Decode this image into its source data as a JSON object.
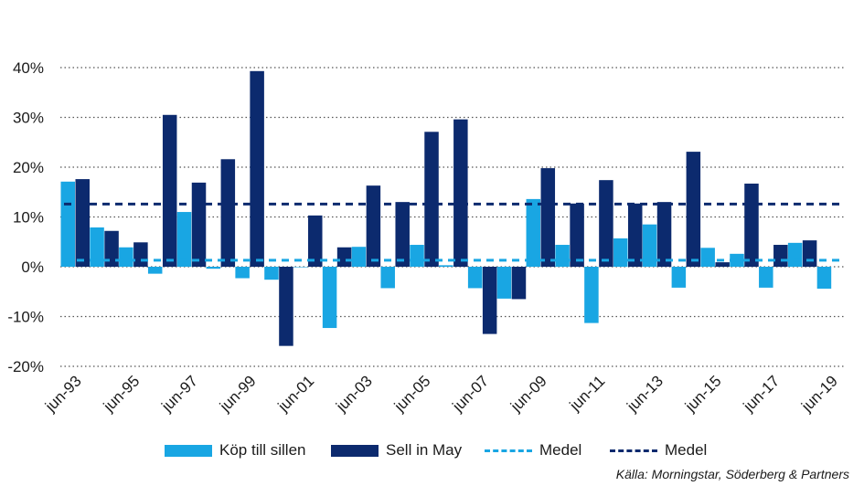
{
  "chart_data": {
    "type": "bar",
    "categories": [
      "jun-93",
      "jun-94",
      "jun-95",
      "jun-96",
      "jun-97",
      "jun-98",
      "jun-99",
      "jun-00",
      "jun-01",
      "jun-02",
      "jun-03",
      "jun-04",
      "jun-05",
      "jun-06",
      "jun-07",
      "jun-08",
      "jun-09",
      "jun-10",
      "jun-11",
      "jun-12",
      "jun-13",
      "jun-14",
      "jun-15",
      "jun-16",
      "jun-17",
      "jun-18",
      "jun-19"
    ],
    "tick_labels": [
      "jun-93",
      "jun-95",
      "jun-97",
      "jun-99",
      "jun-01",
      "jun-03",
      "jun-05",
      "jun-07",
      "jun-09",
      "jun-11",
      "jun-13",
      "jun-15",
      "jun-17",
      "jun-19"
    ],
    "series": [
      {
        "name": "Köp till sillen",
        "color": "#19a6e3",
        "values": [
          17.1,
          7.9,
          3.9,
          -1.4,
          11.0,
          -0.4,
          -2.3,
          -2.6,
          -0.1,
          -12.3,
          4.0,
          -4.3,
          4.4,
          0.3,
          -4.3,
          -6.4,
          13.6,
          4.4,
          -11.3,
          5.7,
          8.5,
          -4.2,
          3.8,
          2.6,
          -4.2,
          4.8,
          -4.4
        ]
      },
      {
        "name": "Sell in May",
        "color": "#0c2a6e",
        "values": [
          17.6,
          7.2,
          4.9,
          30.5,
          16.9,
          21.6,
          39.3,
          -15.9,
          10.3,
          3.9,
          16.3,
          13.0,
          27.1,
          29.6,
          -13.5,
          -6.5,
          19.8,
          12.7,
          17.4,
          12.7,
          13.0,
          23.1,
          0.9,
          16.7,
          4.4,
          5.3,
          null
        ]
      }
    ],
    "averages": [
      {
        "name": "Medel",
        "color": "#19a6e3",
        "value": 1.3
      },
      {
        "name": "Medel",
        "color": "#0c2a6e",
        "value": 12.6
      }
    ],
    "ylim": [
      -20,
      40
    ],
    "yticks": [
      -20,
      -10,
      0,
      10,
      20,
      30,
      40
    ],
    "y_tick_suffix": "%",
    "grid": true,
    "legend_position": "bottom"
  },
  "legend": {
    "item1": "Köp till sillen",
    "item2": "Sell in May",
    "item3": "Medel",
    "item4": "Medel"
  },
  "source": "Källa: Morningstar, Söderberg & Partners"
}
